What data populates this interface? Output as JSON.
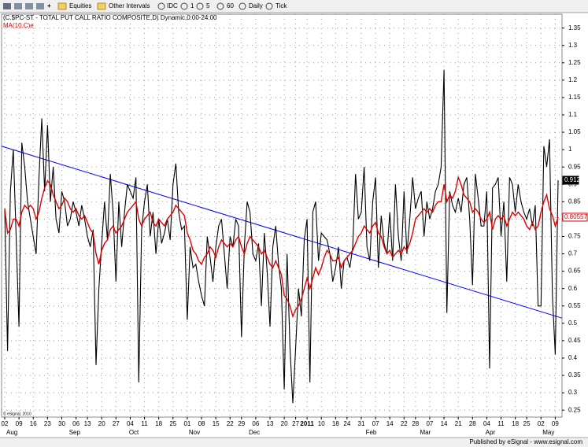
{
  "toolbar": {
    "items": [
      "Equities",
      "Other Intervals",
      "IDC",
      "1",
      "5",
      "60",
      "Daily",
      "Tick"
    ]
  },
  "chart_data": {
    "type": "line",
    "title": "(C.$PC-ST - TOTAL PUT CALL RATIO COMPOSITE,D) Dynamic,0:00-24:00",
    "copyright": "© eSignal, 2010",
    "categories": [
      "02",
      null,
      null,
      null,
      null,
      "09",
      null,
      null,
      null,
      null,
      "16",
      null,
      null,
      null,
      null,
      "23",
      null,
      null,
      null,
      null,
      "30",
      null,
      null,
      null,
      null,
      "06",
      null,
      null,
      null,
      "13",
      null,
      null,
      null,
      null,
      "20",
      null,
      null,
      null,
      null,
      "27",
      null,
      null,
      null,
      null,
      "04",
      null,
      null,
      null,
      null,
      "11",
      null,
      null,
      null,
      null,
      "18",
      null,
      null,
      null,
      null,
      "25",
      null,
      null,
      null,
      null,
      "01",
      null,
      null,
      null,
      null,
      "08",
      null,
      null,
      null,
      null,
      "15",
      null,
      null,
      null,
      null,
      "22",
      null,
      null,
      null,
      "29",
      null,
      null,
      null,
      null,
      "06",
      null,
      null,
      null,
      null,
      "13",
      null,
      null,
      null,
      null,
      "20",
      null,
      null,
      null,
      "27",
      null,
      null,
      null,
      "2011",
      null,
      null,
      null,
      null,
      "10",
      null,
      null,
      null,
      null,
      "18",
      null,
      null,
      null,
      "24",
      null,
      null,
      null,
      null,
      "31",
      null,
      null,
      null,
      null,
      "07",
      null,
      null,
      null,
      null,
      "14",
      null,
      null,
      null,
      null,
      "22",
      null,
      null,
      null,
      "28",
      null,
      null,
      null,
      null,
      "07",
      null,
      null,
      null,
      null,
      "14",
      null,
      null,
      null,
      null,
      "21",
      null,
      null,
      null,
      null,
      "28",
      null,
      null,
      null,
      null,
      "04",
      null,
      null,
      null,
      null,
      "11",
      null,
      null,
      null,
      null,
      "18",
      null,
      null,
      null,
      "25",
      null,
      null,
      null,
      null,
      "02",
      null,
      null,
      null,
      null,
      "09",
      null
    ],
    "months": [
      "Aug",
      null,
      null,
      null,
      null,
      null,
      null,
      null,
      null,
      null,
      null,
      null,
      null,
      null,
      null,
      null,
      null,
      null,
      null,
      null,
      null,
      null,
      "Sep",
      null,
      null,
      null,
      null,
      null,
      null,
      null,
      null,
      null,
      null,
      null,
      null,
      null,
      null,
      null,
      null,
      null,
      null,
      null,
      null,
      "Oct",
      null,
      null,
      null,
      null,
      null,
      null,
      null,
      null,
      null,
      null,
      null,
      null,
      null,
      null,
      null,
      null,
      null,
      null,
      null,
      null,
      "Nov",
      null,
      null,
      null,
      null,
      null,
      null,
      null,
      null,
      null,
      null,
      null,
      null,
      null,
      null,
      null,
      null,
      null,
      null,
      null,
      null,
      "Dec",
      null,
      null,
      null,
      null,
      null,
      null,
      null,
      null,
      null,
      null,
      null,
      null,
      null,
      null,
      null,
      null,
      null,
      null,
      null,
      null,
      null,
      null,
      null,
      null,
      null,
      null,
      null,
      null,
      null,
      null,
      null,
      null,
      null,
      null,
      null,
      null,
      null,
      null,
      null,
      null,
      "Feb",
      null,
      null,
      null,
      null,
      null,
      null,
      null,
      null,
      null,
      null,
      null,
      null,
      null,
      null,
      null,
      null,
      null,
      null,
      "Mar",
      null,
      null,
      null,
      null,
      null,
      null,
      null,
      null,
      null,
      null,
      null,
      null,
      null,
      null,
      null,
      null,
      null,
      null,
      null,
      null,
      null,
      null,
      "Apr",
      null,
      null,
      null,
      null,
      null,
      null,
      null,
      null,
      null,
      null,
      null,
      null,
      null,
      null,
      null,
      null,
      null,
      null,
      null,
      "May",
      null,
      null,
      null,
      null,
      null,
      null
    ],
    "series": [
      {
        "color": "#000000",
        "values": [
          0.83,
          0.42,
          0.88,
          1.0,
          0.75,
          0.49,
          1.02,
          0.95,
          0.85,
          0.8,
          0.75,
          0.7,
          0.92,
          1.09,
          0.88,
          1.07,
          0.85,
          0.95,
          0.8,
          0.76,
          0.88,
          0.85,
          0.78,
          0.8,
          0.85,
          0.82,
          0.78,
          0.84,
          0.8,
          0.75,
          0.72,
          0.77,
          0.38,
          0.6,
          0.73,
          0.85,
          0.74,
          0.93,
          0.82,
          0.62,
          0.85,
          0.72,
          0.82,
          0.9,
          0.88,
          0.86,
          0.92,
          0.33,
          0.77,
          0.85,
          0.9,
          0.75,
          0.82,
          0.7,
          0.8,
          0.73,
          0.76,
          0.8,
          0.74,
          0.9,
          0.96,
          0.82,
          0.77,
          0.78,
          0.51,
          0.72,
          0.66,
          0.67,
          0.62,
          0.58,
          0.55,
          0.75,
          0.69,
          0.62,
          0.72,
          0.78,
          0.8,
          0.7,
          0.6,
          0.75,
          0.72,
          0.8,
          0.78,
          0.46,
          0.72,
          0.85,
          0.82,
          0.7,
          0.68,
          0.73,
          0.55,
          0.76,
          0.65,
          0.49,
          0.72,
          0.78,
          0.67,
          0.6,
          0.31,
          0.7,
          0.43,
          0.27,
          0.43,
          0.6,
          0.52,
          0.74,
          0.8,
          0.33,
          0.82,
          0.85,
          0.68,
          0.76,
          0.75,
          0.74,
          0.7,
          0.62,
          0.66,
          0.72,
          0.6,
          0.68,
          0.69,
          0.66,
          0.72,
          0.93,
          0.8,
          0.82,
          0.95,
          0.72,
          0.68,
          0.85,
          0.92,
          0.66,
          0.81,
          0.73,
          0.7,
          0.82,
          0.68,
          0.9,
          0.75,
          0.68,
          0.88,
          0.7,
          0.8,
          0.92,
          0.83,
          0.86,
          0.88,
          0.75,
          0.85,
          0.8,
          0.83,
          0.88,
          0.9,
          0.95,
          1.23,
          0.53,
          0.88,
          0.84,
          0.82,
          0.86,
          0.82,
          0.9,
          0.92,
          0.8,
          0.61,
          0.93,
          0.86,
          0.78,
          0.78,
          0.88,
          0.37,
          0.89,
          0.9,
          0.92,
          0.75,
          0.85,
          0.62,
          0.92,
          0.9,
          0.82,
          0.9,
          0.85,
          0.82,
          0.8,
          0.83,
          0.78,
          0.84,
          0.55,
          0.55,
          1.01,
          0.95,
          1.03,
          0.58,
          0.41,
          0.912
        ]
      },
      {
        "name": "MA(10,C)e",
        "color": "#e00000",
        "values": [
          0.83,
          0.76,
          0.77,
          0.8,
          0.8,
          0.78,
          0.82,
          0.84,
          0.83,
          0.84,
          0.83,
          0.8,
          0.82,
          0.86,
          0.89,
          0.91,
          0.9,
          0.87,
          0.85,
          0.83,
          0.84,
          0.86,
          0.85,
          0.83,
          0.82,
          0.83,
          0.81,
          0.8,
          0.81,
          0.79,
          0.77,
          0.76,
          0.7,
          0.67,
          0.71,
          0.73,
          0.74,
          0.77,
          0.78,
          0.76,
          0.77,
          0.78,
          0.8,
          0.82,
          0.83,
          0.84,
          0.85,
          0.8,
          0.78,
          0.8,
          0.81,
          0.82,
          0.79,
          0.78,
          0.8,
          0.79,
          0.78,
          0.8,
          0.81,
          0.82,
          0.84,
          0.83,
          0.82,
          0.81,
          0.76,
          0.74,
          0.71,
          0.7,
          0.68,
          0.67,
          0.69,
          0.7,
          0.72,
          0.71,
          0.69,
          0.72,
          0.74,
          0.73,
          0.72,
          0.73,
          0.72,
          0.74,
          0.75,
          0.72,
          0.7,
          0.73,
          0.75,
          0.74,
          0.73,
          0.72,
          0.7,
          0.71,
          0.69,
          0.67,
          0.66,
          0.68,
          0.66,
          0.64,
          0.58,
          0.57,
          0.55,
          0.52,
          0.54,
          0.55,
          0.57,
          0.6,
          0.63,
          0.6,
          0.63,
          0.66,
          0.64,
          0.66,
          0.69,
          0.71,
          0.7,
          0.68,
          0.68,
          0.69,
          0.66,
          0.68,
          0.69,
          0.7,
          0.71,
          0.73,
          0.75,
          0.76,
          0.78,
          0.77,
          0.76,
          0.78,
          0.79,
          0.76,
          0.75,
          0.72,
          0.7,
          0.71,
          0.69,
          0.7,
          0.71,
          0.7,
          0.72,
          0.71,
          0.73,
          0.76,
          0.8,
          0.81,
          0.82,
          0.83,
          0.82,
          0.83,
          0.82,
          0.84,
          0.85,
          0.85,
          0.9,
          0.85,
          0.87,
          0.86,
          0.88,
          0.92,
          0.9,
          0.87,
          0.86,
          0.85,
          0.82,
          0.83,
          0.82,
          0.8,
          0.79,
          0.8,
          0.82,
          0.77,
          0.8,
          0.81,
          0.8,
          0.81,
          0.78,
          0.8,
          0.82,
          0.81,
          0.82,
          0.81,
          0.8,
          0.78,
          0.77,
          0.79,
          0.77,
          0.78,
          0.82,
          0.85,
          0.87,
          0.83,
          0.81,
          0.78,
          0.80557
        ]
      }
    ],
    "trendline": {
      "color": "#0000ff",
      "values": [
        1.01,
        0.515
      ]
    },
    "ylim": [
      0.23,
      1.39
    ],
    "yticks": [
      0.25,
      0.3,
      0.35,
      0.4,
      0.45,
      0.5,
      0.55,
      0.6,
      0.65,
      0.7,
      0.75,
      0.8,
      0.85,
      0.9,
      0.95,
      1,
      1.05,
      1.1,
      1.15,
      1.2,
      1.25,
      1.3,
      1.35
    ],
    "grid": true
  },
  "footer": "Published by eSignal - www.esignal.com"
}
